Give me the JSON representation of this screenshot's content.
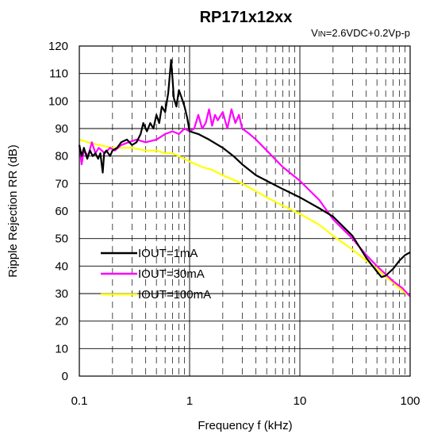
{
  "chart_data": {
    "type": "line",
    "title": "RP171x12xx",
    "subtitle": {
      "v_prefix": "V",
      "in_sub": "IN",
      "rest": "=2.6VDC+0.2Vp-p"
    },
    "xlabel": "Frequency f (kHz)",
    "ylabel": "Ripple Rejection RR (dB)",
    "x_scale": "log",
    "xlim": [
      0.1,
      100
    ],
    "ylim": [
      0,
      120
    ],
    "x_ticks": [
      {
        "value": 0.1,
        "label": "0.1"
      },
      {
        "value": 1,
        "label": "1"
      },
      {
        "value": 10,
        "label": "10"
      },
      {
        "value": 100,
        "label": "100"
      }
    ],
    "y_ticks": [
      {
        "value": 0,
        "label": "0"
      },
      {
        "value": 10,
        "label": "10"
      },
      {
        "value": 20,
        "label": "20"
      },
      {
        "value": 30,
        "label": "30"
      },
      {
        "value": 40,
        "label": "40"
      },
      {
        "value": 50,
        "label": "50"
      },
      {
        "value": 60,
        "label": "60"
      },
      {
        "value": 70,
        "label": "70"
      },
      {
        "value": 80,
        "label": "80"
      },
      {
        "value": 90,
        "label": "90"
      },
      {
        "value": 100,
        "label": "100"
      },
      {
        "value": 110,
        "label": "110"
      },
      {
        "value": 120,
        "label": "120"
      }
    ],
    "grid": true,
    "legend_position": "lower-left",
    "series": [
      {
        "name": "IOUT=1mA",
        "color": "#000000",
        "points": [
          [
            0.1,
            84
          ],
          [
            0.105,
            80
          ],
          [
            0.11,
            83
          ],
          [
            0.118,
            79
          ],
          [
            0.125,
            82
          ],
          [
            0.132,
            80
          ],
          [
            0.14,
            81
          ],
          [
            0.148,
            79
          ],
          [
            0.155,
            81
          ],
          [
            0.163,
            74
          ],
          [
            0.168,
            81
          ],
          [
            0.176,
            82
          ],
          [
            0.19,
            80
          ],
          [
            0.2,
            82
          ],
          [
            0.22,
            83
          ],
          [
            0.24,
            85
          ],
          [
            0.27,
            86
          ],
          [
            0.3,
            84
          ],
          [
            0.33,
            85
          ],
          [
            0.36,
            88
          ],
          [
            0.38,
            92
          ],
          [
            0.41,
            89
          ],
          [
            0.44,
            92
          ],
          [
            0.47,
            90
          ],
          [
            0.5,
            95
          ],
          [
            0.53,
            92
          ],
          [
            0.56,
            98
          ],
          [
            0.6,
            96
          ],
          [
            0.64,
            103
          ],
          [
            0.66,
            109
          ],
          [
            0.68,
            115
          ],
          [
            0.7,
            108
          ],
          [
            0.72,
            101
          ],
          [
            0.76,
            98
          ],
          [
            0.8,
            104
          ],
          [
            0.85,
            101
          ],
          [
            0.9,
            98
          ],
          [
            0.95,
            94
          ],
          [
            1.0,
            89
          ],
          [
            1.2,
            88
          ],
          [
            1.5,
            86
          ],
          [
            2.0,
            83
          ],
          [
            2.5,
            80
          ],
          [
            3,
            77
          ],
          [
            4,
            73
          ],
          [
            5,
            71
          ],
          [
            7,
            68
          ],
          [
            10,
            65
          ],
          [
            15,
            61
          ],
          [
            20,
            58
          ],
          [
            30,
            51
          ],
          [
            40,
            43
          ],
          [
            50,
            38
          ],
          [
            55,
            36
          ],
          [
            60,
            36.5
          ],
          [
            70,
            39
          ],
          [
            80,
            42
          ],
          [
            90,
            44
          ],
          [
            100,
            45
          ]
        ]
      },
      {
        "name": "IOUT=30mA",
        "color": "#ff00ff",
        "points": [
          [
            0.1,
            84
          ],
          [
            0.105,
            77
          ],
          [
            0.11,
            82
          ],
          [
            0.12,
            80
          ],
          [
            0.13,
            85
          ],
          [
            0.14,
            81
          ],
          [
            0.15,
            83
          ],
          [
            0.17,
            81
          ],
          [
            0.19,
            83
          ],
          [
            0.21,
            82
          ],
          [
            0.24,
            84
          ],
          [
            0.28,
            85
          ],
          [
            0.33,
            86
          ],
          [
            0.4,
            85
          ],
          [
            0.5,
            86
          ],
          [
            0.6,
            88
          ],
          [
            0.7,
            89
          ],
          [
            0.8,
            88
          ],
          [
            0.9,
            90
          ],
          [
            1.0,
            89
          ],
          [
            1.1,
            90
          ],
          [
            1.2,
            95
          ],
          [
            1.3,
            90
          ],
          [
            1.4,
            92
          ],
          [
            1.5,
            97
          ],
          [
            1.6,
            91
          ],
          [
            1.7,
            95
          ],
          [
            1.8,
            93
          ],
          [
            2.0,
            96
          ],
          [
            2.2,
            90
          ],
          [
            2.4,
            97
          ],
          [
            2.6,
            92
          ],
          [
            2.8,
            95
          ],
          [
            3.0,
            90
          ],
          [
            3.5,
            88
          ],
          [
            4,
            86
          ],
          [
            5,
            82
          ],
          [
            7,
            76
          ],
          [
            10,
            71
          ],
          [
            15,
            64
          ],
          [
            20,
            57
          ],
          [
            30,
            50
          ],
          [
            40,
            44
          ],
          [
            50,
            40
          ],
          [
            60,
            37
          ],
          [
            70,
            34.5
          ],
          [
            85,
            32
          ],
          [
            100,
            29
          ]
        ]
      },
      {
        "name": "IOUT=100mA",
        "color": "#ffff00",
        "points": [
          [
            0.1,
            86
          ],
          [
            0.12,
            85
          ],
          [
            0.15,
            84
          ],
          [
            0.2,
            83
          ],
          [
            0.3,
            83
          ],
          [
            0.4,
            82
          ],
          [
            0.5,
            82
          ],
          [
            0.6,
            81
          ],
          [
            0.7,
            81
          ],
          [
            0.8,
            80
          ],
          [
            1.0,
            78
          ],
          [
            1.3,
            76
          ],
          [
            1.6,
            75
          ],
          [
            2.0,
            73
          ],
          [
            3,
            70
          ],
          [
            5,
            65
          ],
          [
            7,
            62
          ],
          [
            10,
            59
          ],
          [
            15,
            55
          ],
          [
            20,
            51
          ],
          [
            30,
            46
          ],
          [
            40,
            42
          ],
          [
            50,
            39
          ],
          [
            60,
            36
          ],
          [
            70,
            34
          ],
          [
            85,
            31
          ],
          [
            100,
            29
          ]
        ]
      }
    ]
  }
}
